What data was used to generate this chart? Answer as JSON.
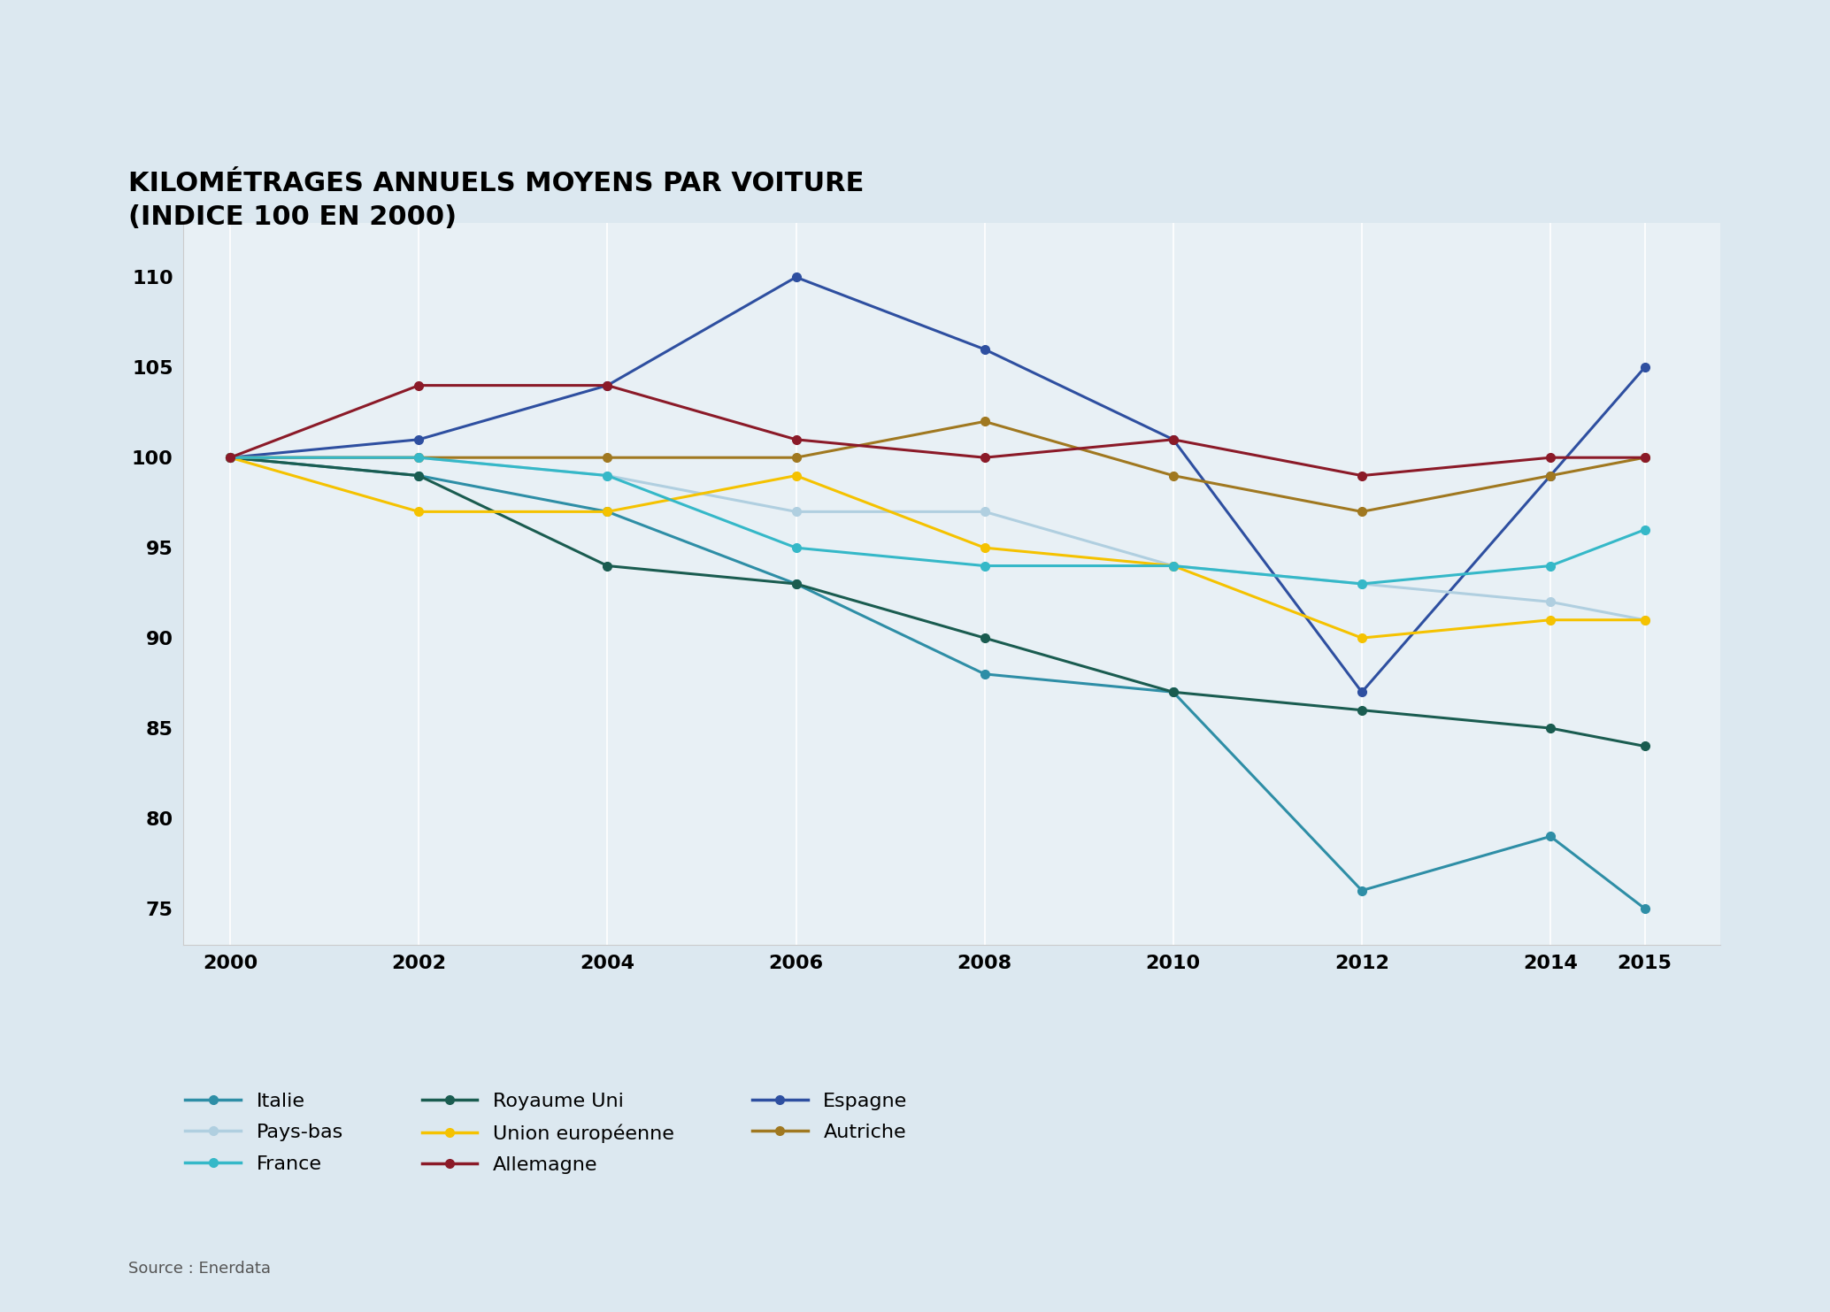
{
  "title": "KILOMÉTRAGES ANNUELS MOYENS PAR VOITURE\n(INDICE 100 EN 2000)",
  "source": "Source : Enerdata",
  "background_color": "#dce8f0",
  "plot_background_color": "#e8f0f5",
  "years": [
    2000,
    2002,
    2004,
    2006,
    2008,
    2010,
    2012,
    2014,
    2015
  ],
  "series": [
    {
      "name": "Italie",
      "color": "#2e8ea6",
      "data": [
        100,
        99,
        97,
        93,
        88,
        87,
        76,
        79,
        75
      ],
      "marker": "o",
      "linewidth": 2.2
    },
    {
      "name": "Royaume Uni",
      "color": "#1a5c50",
      "data": [
        100,
        99,
        94,
        93,
        90,
        87,
        86,
        85,
        84
      ],
      "marker": "o",
      "linewidth": 2.2
    },
    {
      "name": "Espagne",
      "color": "#2e4fa0",
      "data": [
        100,
        101,
        104,
        110,
        106,
        101,
        87,
        99,
        105
      ],
      "marker": "o",
      "linewidth": 2.2
    },
    {
      "name": "Pays-bas",
      "color": "#b0cfe0",
      "data": [
        100,
        100,
        99,
        97,
        97,
        94,
        93,
        92,
        91
      ],
      "marker": "o",
      "linewidth": 2.2
    },
    {
      "name": "Union européenne",
      "color": "#f5c200",
      "data": [
        100,
        97,
        97,
        99,
        95,
        94,
        90,
        91,
        91
      ],
      "marker": "o",
      "linewidth": 2.2
    },
    {
      "name": "Autriche",
      "color": "#a07820",
      "data": [
        100,
        100,
        100,
        100,
        102,
        99,
        97,
        99,
        100
      ],
      "marker": "o",
      "linewidth": 2.2
    },
    {
      "name": "France",
      "color": "#35b8c8",
      "data": [
        100,
        100,
        99,
        95,
        94,
        94,
        93,
        94,
        96
      ],
      "marker": "o",
      "linewidth": 2.2
    },
    {
      "name": "Allemagne",
      "color": "#8b1a28",
      "data": [
        100,
        104,
        104,
        101,
        100,
        101,
        99,
        100,
        100
      ],
      "marker": "o",
      "linewidth": 2.2
    }
  ],
  "ylim": [
    73,
    113
  ],
  "yticks": [
    75,
    80,
    85,
    90,
    95,
    100,
    105,
    110
  ],
  "xlim_left": 1999.5,
  "xlim_right": 2015.8,
  "title_fontsize": 22,
  "tick_fontsize": 16,
  "legend_fontsize": 16,
  "source_fontsize": 13,
  "legend_order": [
    [
      "Italie",
      "#2e8ea6"
    ],
    [
      "Pays-bas",
      "#b0cfe0"
    ],
    [
      "France",
      "#35b8c8"
    ],
    [
      "Royaume Uni",
      "#1a5c50"
    ],
    [
      "Union européenne",
      "#f5c200"
    ],
    [
      "Allemagne",
      "#8b1a28"
    ],
    [
      "Espagne",
      "#2e4fa0"
    ],
    [
      "Autriche",
      "#a07820"
    ]
  ]
}
